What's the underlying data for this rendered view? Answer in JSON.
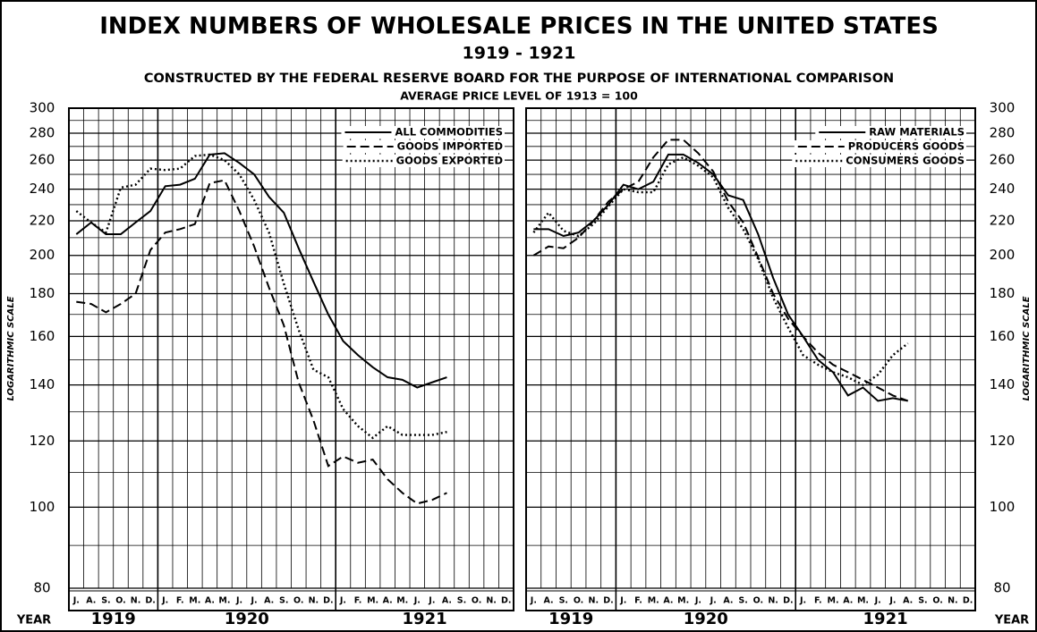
{
  "chart_data": [
    {
      "type": "line",
      "title": "INDEX NUMBERS OF WHOLESALE PRICES IN THE UNITED STATES",
      "subtitle": "1919 - 1921",
      "description": "CONSTRUCTED BY THE FEDERAL RESERVE BOARD FOR THE PURPOSE OF INTERNATIONAL COMPARISON",
      "note": "AVERAGE PRICE LEVEL OF 1913 = 100",
      "y_label": "LOGARITHMIC SCALE",
      "x_label": "YEAR",
      "years": [
        "1919",
        "1920",
        "1921"
      ],
      "categories": [
        "J.",
        "A.",
        "S.",
        "O.",
        "N.",
        "D.",
        "J.",
        "F.",
        "M.",
        "A.",
        "M.",
        "J.",
        "J.",
        "A.",
        "S.",
        "O.",
        "N.",
        "D.",
        "J.",
        "F.",
        "M.",
        "A.",
        "M.",
        "J.",
        "J.",
        "A.",
        "S.",
        "O.",
        "N.",
        "D."
      ],
      "log_scale": true,
      "ylim": [
        80,
        300
      ],
      "yticks": [
        80,
        100,
        120,
        140,
        160,
        180,
        200,
        220,
        240,
        260,
        280,
        300
      ],
      "minor_yticks": [
        90,
        110,
        130,
        150,
        170,
        190,
        210,
        230,
        250,
        270,
        290
      ],
      "grid": true,
      "legend": "upper right",
      "series": [
        {
          "name": "ALL COMMODITIES",
          "color": "#000000",
          "style": "solid",
          "values": [
            212,
            219,
            212,
            212,
            219,
            226,
            242,
            243,
            247,
            264,
            265,
            258,
            250,
            235,
            225,
            204,
            186,
            170,
            158,
            152,
            147,
            143,
            142,
            139,
            141,
            143,
            null,
            null,
            null,
            null
          ]
        },
        {
          "name": "GOODS IMPORTED",
          "color": "#000000",
          "style": "dashed",
          "values": [
            176,
            175,
            171,
            175,
            180,
            203,
            213,
            215,
            218,
            244,
            246,
            226,
            205,
            183,
            165,
            141,
            127,
            112,
            115,
            113,
            114,
            108,
            104,
            101,
            102,
            104,
            null,
            null,
            null,
            null
          ]
        },
        {
          "name": "GOODS EXPORTED",
          "color": "#000000",
          "style": "dotted",
          "values": [
            226,
            219,
            213,
            241,
            243,
            254,
            253,
            254,
            263,
            264,
            260,
            250,
            233,
            213,
            185,
            163,
            146,
            143,
            131,
            125,
            121,
            125,
            122,
            122,
            122,
            123,
            null,
            null,
            null,
            null
          ]
        }
      ]
    },
    {
      "type": "line",
      "y_label": "LOGARITHMIC SCALE",
      "x_label": "YEAR",
      "years": [
        "1919",
        "1920",
        "1921"
      ],
      "categories": [
        "J.",
        "A.",
        "S.",
        "O.",
        "N.",
        "D.",
        "J.",
        "F.",
        "M.",
        "A.",
        "M.",
        "J.",
        "J.",
        "A.",
        "S.",
        "O.",
        "N.",
        "D.",
        "J.",
        "F.",
        "M.",
        "A.",
        "M.",
        "J.",
        "J.",
        "A.",
        "S.",
        "O.",
        "N.",
        "D."
      ],
      "log_scale": true,
      "ylim": [
        80,
        300
      ],
      "yticks": [
        80,
        100,
        120,
        140,
        160,
        180,
        200,
        220,
        240,
        260,
        280,
        300
      ],
      "minor_yticks": [
        90,
        110,
        130,
        150,
        170,
        190,
        210,
        230,
        250,
        270,
        290
      ],
      "grid": true,
      "legend": "upper right",
      "series": [
        {
          "name": "RAW MATERIALS",
          "color": "#000000",
          "style": "solid",
          "values": [
            215,
            215,
            211,
            213,
            220,
            230,
            243,
            240,
            245,
            264,
            264,
            258,
            250,
            236,
            233,
            212,
            188,
            170,
            160,
            150,
            145,
            136,
            139,
            134,
            135,
            134,
            null,
            null,
            null,
            null
          ]
        },
        {
          "name": "PRODUCERS GOODS",
          "color": "#000000",
          "style": "dashed",
          "values": [
            200,
            205,
            204,
            210,
            220,
            232,
            240,
            245,
            262,
            275,
            275,
            265,
            252,
            232,
            219,
            199,
            180,
            168,
            160,
            153,
            148,
            145,
            142,
            139,
            136,
            134,
            null,
            null,
            null,
            null
          ]
        },
        {
          "name": "CONSUMERS GOODS",
          "color": "#000000",
          "style": "dotted",
          "values": [
            213,
            225,
            214,
            211,
            218,
            229,
            240,
            238,
            238,
            257,
            262,
            256,
            248,
            228,
            215,
            198,
            178,
            164,
            152,
            148,
            145,
            143,
            140,
            144,
            152,
            157,
            null,
            null,
            null,
            null
          ]
        }
      ]
    }
  ]
}
